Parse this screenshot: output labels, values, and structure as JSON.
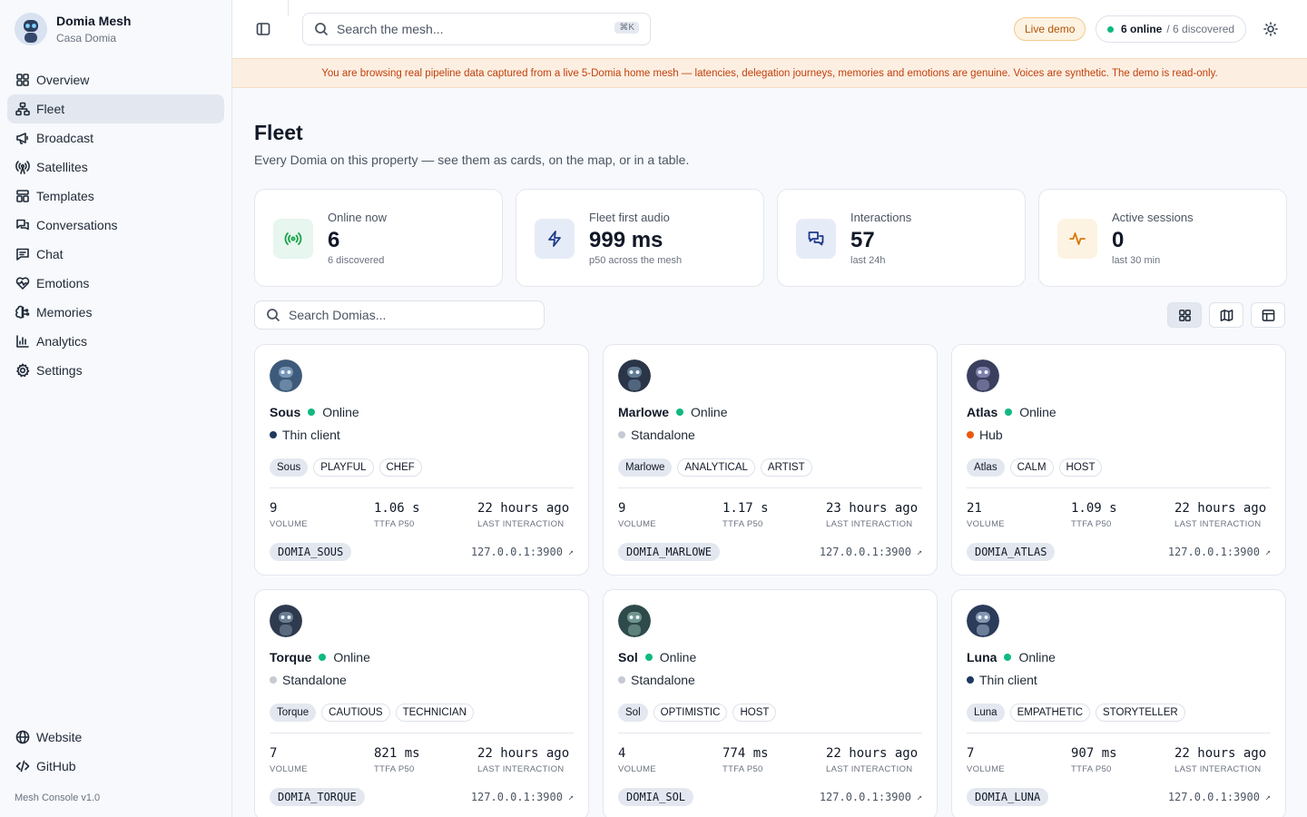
{
  "brand": {
    "name": "Domia Mesh",
    "subtitle": "Casa Domia"
  },
  "nav": [
    {
      "label": "Overview",
      "icon": "grid-icon",
      "active": false
    },
    {
      "label": "Fleet",
      "icon": "fleet-icon",
      "active": true
    },
    {
      "label": "Broadcast",
      "icon": "megaphone-icon",
      "active": false
    },
    {
      "label": "Satellites",
      "icon": "antenna-icon",
      "active": false
    },
    {
      "label": "Templates",
      "icon": "template-icon",
      "active": false
    },
    {
      "label": "Conversations",
      "icon": "chat-bubbles-icon",
      "active": false
    },
    {
      "label": "Chat",
      "icon": "chat-icon",
      "active": false
    },
    {
      "label": "Emotions",
      "icon": "heart-icon",
      "active": false
    },
    {
      "label": "Memories",
      "icon": "brain-icon",
      "active": false
    },
    {
      "label": "Analytics",
      "icon": "bar-chart-icon",
      "active": false
    },
    {
      "label": "Settings",
      "icon": "gear-icon",
      "active": false
    }
  ],
  "nav_bottom": [
    {
      "label": "Website",
      "icon": "globe-icon"
    },
    {
      "label": "GitHub",
      "icon": "code-icon"
    }
  ],
  "version": "Mesh Console v1.0",
  "topbar": {
    "search_placeholder": "Search the mesh...",
    "shortcut": "⌘K",
    "live_badge": "Live demo",
    "online": "6 online",
    "discovered": "/ 6 discovered"
  },
  "banner": "You are browsing real pipeline data captured from a live 5-Domia home mesh — latencies, delegation journeys, memories and emotions are genuine. Voices are synthetic. The demo is read-only.",
  "page": {
    "title": "Fleet",
    "subtitle": "Every Domia on this property — see them as cards, on the map, or in a table."
  },
  "stats": [
    {
      "label": "Online now",
      "value": "6",
      "sub": "6 discovered",
      "icon": "signal-icon",
      "bg": "#e7f6ee",
      "color": "#16a34a"
    },
    {
      "label": "Fleet first audio",
      "value": "999 ms",
      "sub": "p50 across the mesh",
      "icon": "bolt-icon",
      "bg": "#e6ecf7",
      "color": "#1e3a8a"
    },
    {
      "label": "Interactions",
      "value": "57",
      "sub": "last 24h",
      "icon": "messages-icon",
      "bg": "#e6ecf7",
      "color": "#1e3a8a"
    },
    {
      "label": "Active sessions",
      "value": "0",
      "sub": "last 30 min",
      "icon": "activity-icon",
      "bg": "#fdf3e2",
      "color": "#d97706"
    }
  ],
  "fleet_search_placeholder": "Search Domias...",
  "metric_labels": {
    "volume": "VOLUME",
    "ttfa": "TTFA P50",
    "last": "LAST INTERACTION"
  },
  "domias": [
    {
      "name": "Sous",
      "status": "Online",
      "role": "Thin client",
      "role_color": "#1e3a5f",
      "tags": [
        "Sous",
        "PLAYFUL",
        "CHEF"
      ],
      "volume": "9",
      "ttfa": "1.06 s",
      "last": "22 hours ago",
      "id": "DOMIA_SOUS",
      "addr": "127.0.0.1:3900"
    },
    {
      "name": "Marlowe",
      "status": "Online",
      "role": "Standalone",
      "role_color": "#c5cad3",
      "tags": [
        "Marlowe",
        "ANALYTICAL",
        "ARTIST"
      ],
      "volume": "9",
      "ttfa": "1.17 s",
      "last": "23 hours ago",
      "id": "DOMIA_MARLOWE",
      "addr": "127.0.0.1:3900"
    },
    {
      "name": "Atlas",
      "status": "Online",
      "role": "Hub",
      "role_color": "#ea580c",
      "tags": [
        "Atlas",
        "CALM",
        "HOST"
      ],
      "volume": "21",
      "ttfa": "1.09 s",
      "last": "22 hours ago",
      "id": "DOMIA_ATLAS",
      "addr": "127.0.0.1:3900"
    },
    {
      "name": "Torque",
      "status": "Online",
      "role": "Standalone",
      "role_color": "#c5cad3",
      "tags": [
        "Torque",
        "CAUTIOUS",
        "TECHNICIAN"
      ],
      "volume": "7",
      "ttfa": "821 ms",
      "last": "22 hours ago",
      "id": "DOMIA_TORQUE",
      "addr": "127.0.0.1:3900"
    },
    {
      "name": "Sol",
      "status": "Online",
      "role": "Standalone",
      "role_color": "#c5cad3",
      "tags": [
        "Sol",
        "OPTIMISTIC",
        "HOST"
      ],
      "volume": "4",
      "ttfa": "774 ms",
      "last": "22 hours ago",
      "id": "DOMIA_SOL",
      "addr": "127.0.0.1:3900"
    },
    {
      "name": "Luna",
      "status": "Online",
      "role": "Thin client",
      "role_color": "#1e3a5f",
      "tags": [
        "Luna",
        "EMPATHETIC",
        "STORYTELLER"
      ],
      "volume": "7",
      "ttfa": "907 ms",
      "last": "22 hours ago",
      "id": "DOMIA_LUNA",
      "addr": "127.0.0.1:3900"
    }
  ],
  "colors": {
    "online": "#10b981",
    "accent": "#b45309"
  }
}
